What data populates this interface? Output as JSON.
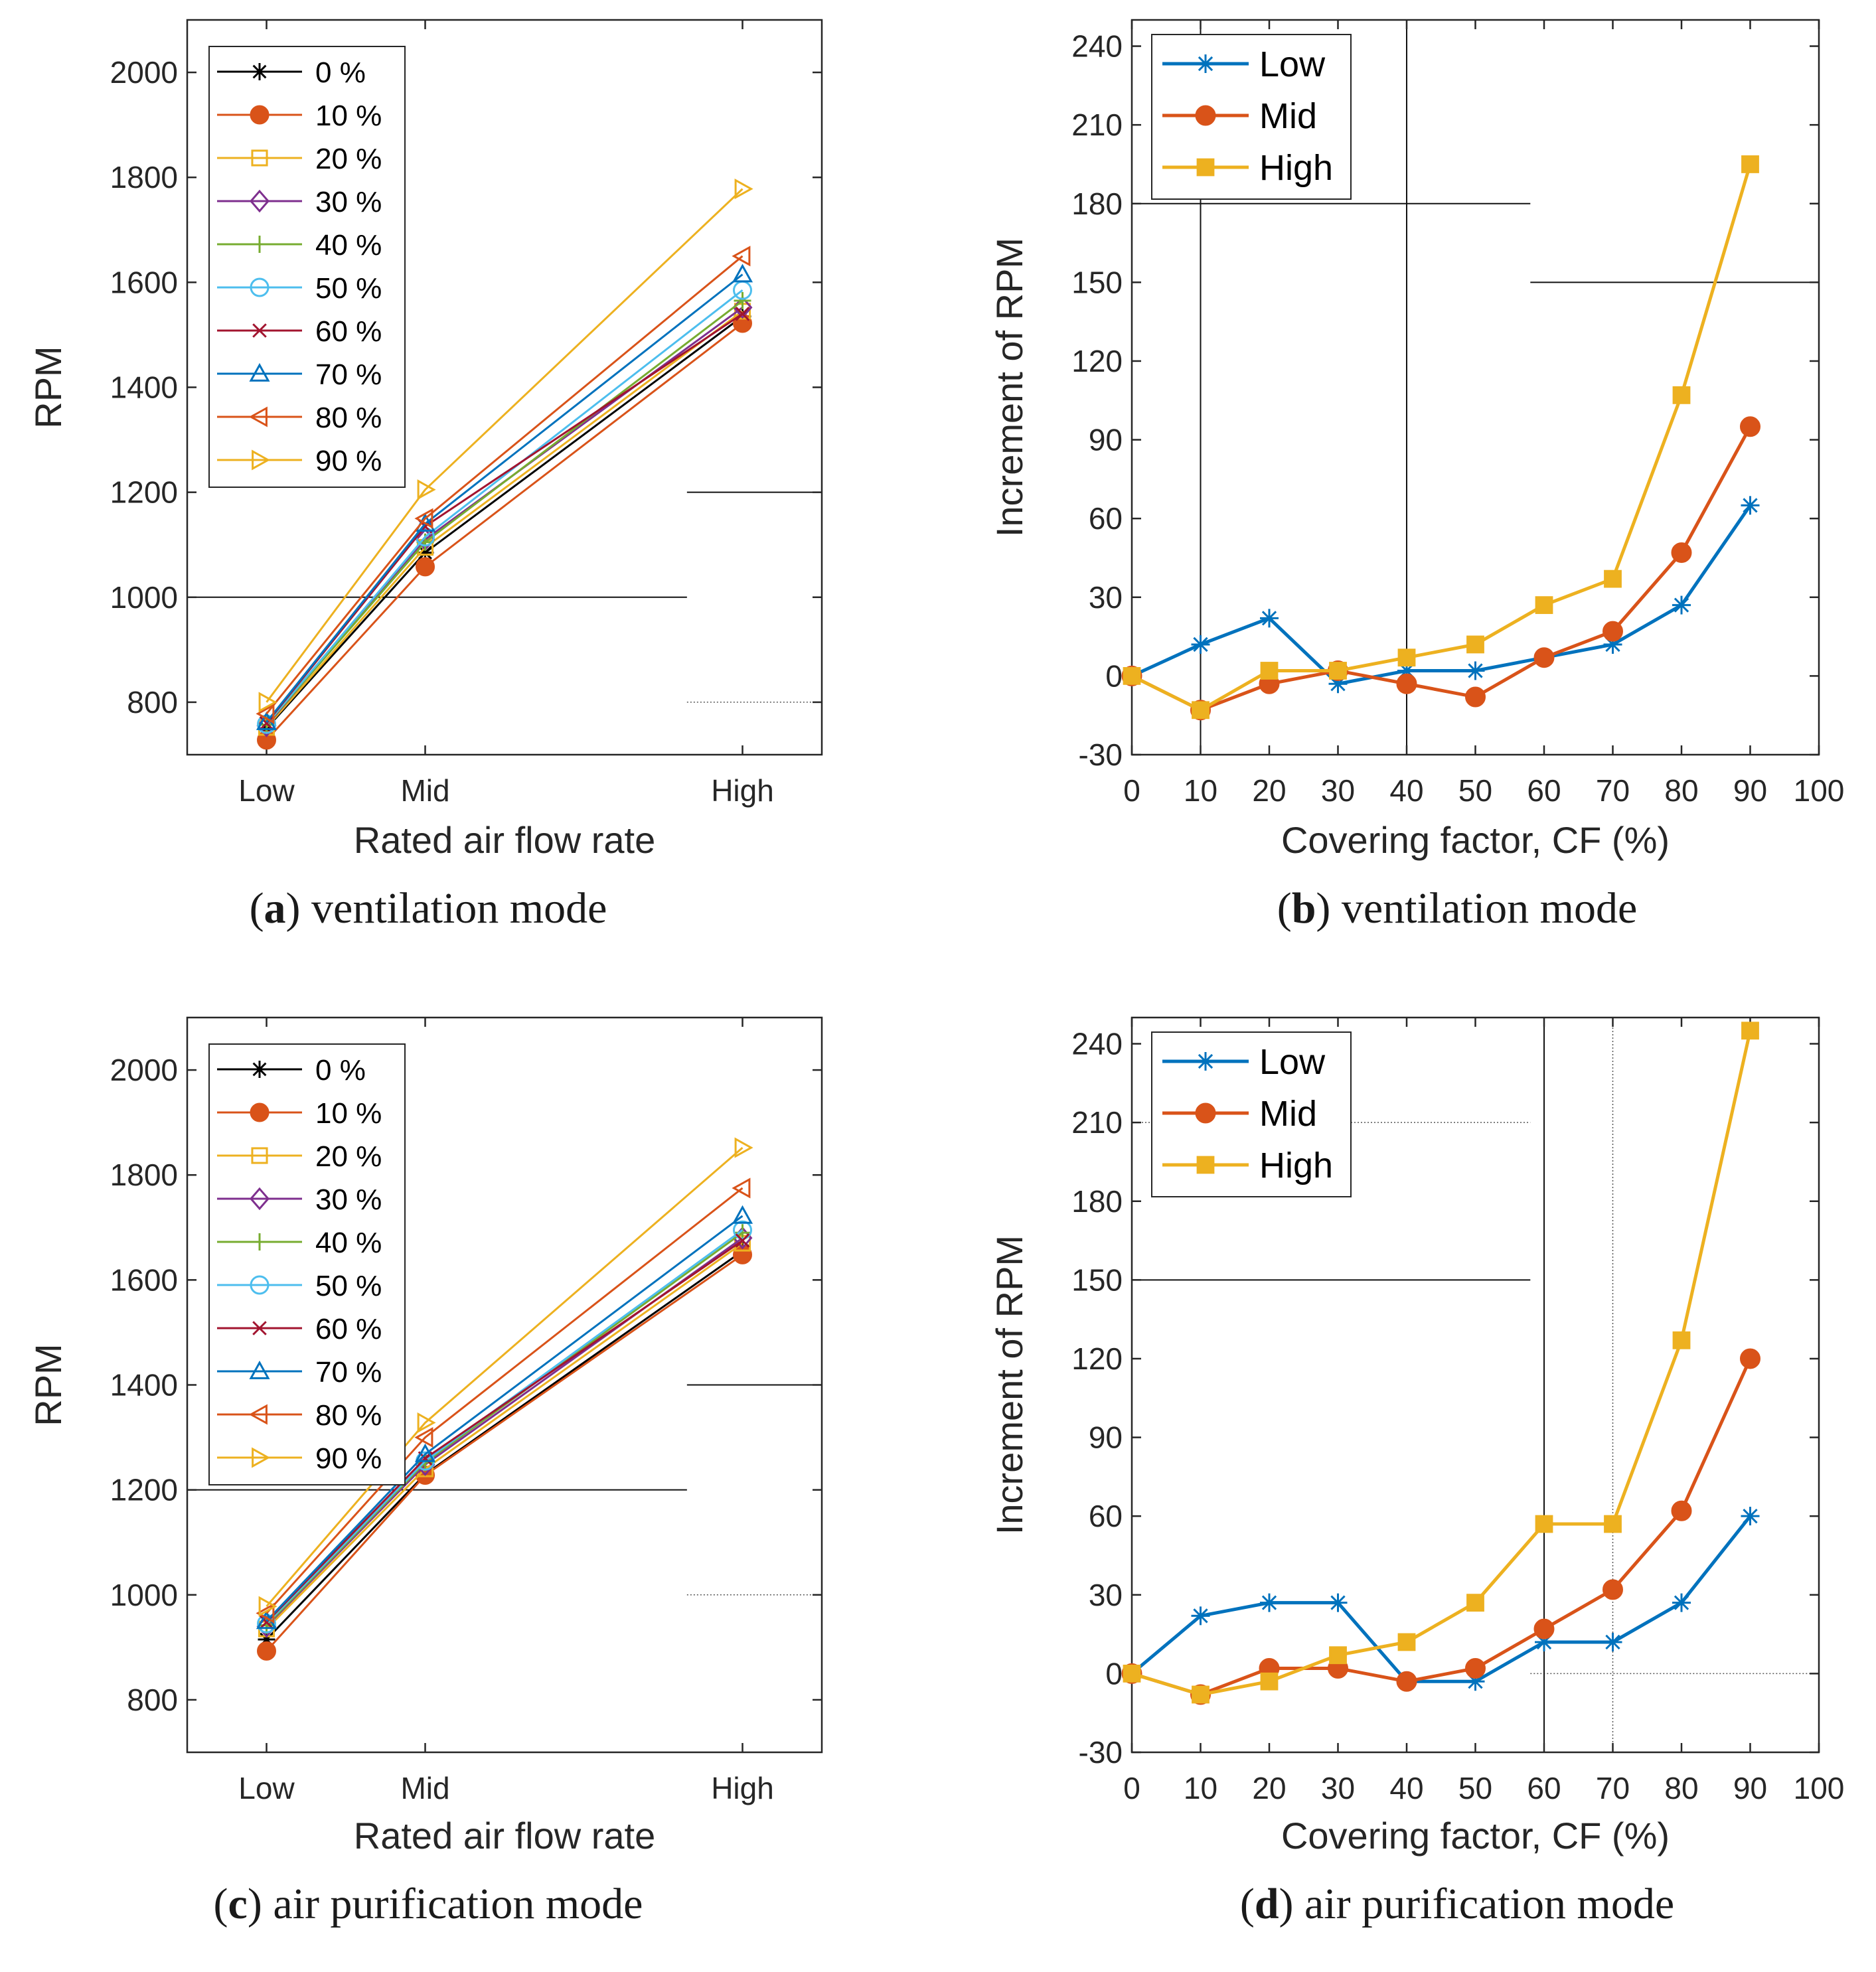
{
  "chart_data": [
    {
      "id": "a",
      "type": "line",
      "x_kind": "category",
      "categories": [
        "Low",
        "Mid",
        "High"
      ],
      "category_positions": [
        1,
        2,
        4
      ],
      "xlim": [
        0.5,
        4.5
      ],
      "ylim": [
        700,
        2100
      ],
      "yticks": [
        800,
        1000,
        1200,
        1400,
        1600,
        1800,
        2000
      ],
      "xlabel": "Rated air flow rate",
      "ylabel": "RPM",
      "legend_position": "top-left",
      "caption_letter": "a",
      "caption_text": "ventilation mode",
      "stray_lines": [
        {
          "y": 1000,
          "x_from": 0.5,
          "x_to": 3.65,
          "style": "solid"
        },
        {
          "y": 1200,
          "x_from": 3.65,
          "x_to": 4.5,
          "style": "solid"
        },
        {
          "y": 800,
          "x_from": 3.65,
          "x_to": 4.5,
          "style": "dotted"
        }
      ],
      "series": [
        {
          "name": "0 %",
          "color": "#000000",
          "marker": "star",
          "values": [
            750,
            1085,
            1535
          ]
        },
        {
          "name": "10 %",
          "color": "#D95319",
          "marker": "circle-filled",
          "values": [
            728,
            1058,
            1522
          ]
        },
        {
          "name": "20 %",
          "color": "#EDB120",
          "marker": "square",
          "values": [
            752,
            1095,
            1545
          ]
        },
        {
          "name": "30 %",
          "color": "#7E2F8E",
          "marker": "diamond",
          "values": [
            755,
            1110,
            1552
          ]
        },
        {
          "name": "40 %",
          "color": "#77AC30",
          "marker": "plus",
          "values": [
            757,
            1105,
            1565
          ]
        },
        {
          "name": "50 %",
          "color": "#4DBEEE",
          "marker": "circle",
          "values": [
            758,
            1115,
            1585
          ]
        },
        {
          "name": "60 %",
          "color": "#A2142F",
          "marker": "x",
          "values": [
            760,
            1135,
            1540
          ]
        },
        {
          "name": "70 %",
          "color": "#0072BD",
          "marker": "triangle-up",
          "values": [
            762,
            1140,
            1615
          ]
        },
        {
          "name": "80 %",
          "color": "#D95319",
          "marker": "triangle-left",
          "values": [
            778,
            1150,
            1650
          ]
        },
        {
          "name": "90 %",
          "color": "#EDB120",
          "marker": "triangle-right",
          "values": [
            800,
            1205,
            1778
          ]
        }
      ]
    },
    {
      "id": "b",
      "type": "line",
      "x_kind": "numeric",
      "xlim": [
        0,
        100
      ],
      "xticks": [
        0,
        10,
        20,
        30,
        40,
        50,
        60,
        70,
        80,
        90,
        100
      ],
      "ylim": [
        -30,
        250
      ],
      "yticks": [
        -30,
        0,
        30,
        60,
        90,
        120,
        150,
        180,
        210,
        240
      ],
      "xlabel": "Covering factor, CF (%)",
      "ylabel": "Increment of RPM",
      "legend_position": "top-left",
      "caption_letter": "b",
      "caption_text": "ventilation mode",
      "stray_lines": [
        {
          "y": 180,
          "x_from": 0,
          "x_to": 58,
          "style": "solid"
        },
        {
          "y": 150,
          "x_from": 58,
          "x_to": 100,
          "style": "solid"
        },
        {
          "x": 10,
          "y_from": -30,
          "y_to": 250,
          "style": "solid"
        },
        {
          "x": 40,
          "y_from": -30,
          "y_to": 250,
          "style": "solid"
        }
      ],
      "x": [
        0,
        10,
        20,
        30,
        40,
        50,
        60,
        70,
        80,
        90
      ],
      "series": [
        {
          "name": "Low",
          "color": "#0072BD",
          "marker": "star",
          "values": [
            0,
            12,
            22,
            -3,
            2,
            2,
            7,
            12,
            27,
            65
          ]
        },
        {
          "name": "Mid",
          "color": "#D95319",
          "marker": "circle-filled",
          "values": [
            0,
            -13,
            -3,
            2,
            -3,
            -8,
            7,
            17,
            47,
            95
          ]
        },
        {
          "name": "High",
          "color": "#EDB120",
          "marker": "square-filled",
          "values": [
            0,
            -13,
            2,
            2,
            7,
            12,
            27,
            37,
            107,
            195
          ]
        }
      ]
    },
    {
      "id": "c",
      "type": "line",
      "x_kind": "category",
      "categories": [
        "Low",
        "Mid",
        "High"
      ],
      "category_positions": [
        1,
        2,
        4
      ],
      "xlim": [
        0.5,
        4.5
      ],
      "ylim": [
        700,
        2100
      ],
      "yticks": [
        800,
        1000,
        1200,
        1400,
        1600,
        1800,
        2000
      ],
      "xlabel": "Rated air flow rate",
      "ylabel": "RPM",
      "legend_position": "top-left",
      "caption_letter": "c",
      "caption_text": "air purification mode",
      "stray_lines": [
        {
          "y": 1200,
          "x_from": 0.5,
          "x_to": 3.65,
          "style": "solid"
        },
        {
          "y": 1400,
          "x_from": 3.65,
          "x_to": 4.5,
          "style": "solid"
        },
        {
          "y": 1000,
          "x_from": 3.65,
          "x_to": 4.5,
          "style": "dotted"
        }
      ],
      "series": [
        {
          "name": "0 %",
          "color": "#000000",
          "marker": "star",
          "values": [
            915,
            1230,
            1655
          ]
        },
        {
          "name": "10 %",
          "color": "#D95319",
          "marker": "circle-filled",
          "values": [
            893,
            1228,
            1648
          ]
        },
        {
          "name": "20 %",
          "color": "#EDB120",
          "marker": "square",
          "values": [
            935,
            1240,
            1670
          ]
        },
        {
          "name": "30 %",
          "color": "#7E2F8E",
          "marker": "diamond",
          "values": [
            940,
            1248,
            1680
          ]
        },
        {
          "name": "40 %",
          "color": "#77AC30",
          "marker": "plus",
          "values": [
            942,
            1252,
            1690
          ]
        },
        {
          "name": "50 %",
          "color": "#4DBEEE",
          "marker": "circle",
          "values": [
            945,
            1255,
            1695
          ]
        },
        {
          "name": "60 %",
          "color": "#A2142F",
          "marker": "x",
          "values": [
            948,
            1260,
            1675
          ]
        },
        {
          "name": "70 %",
          "color": "#0072BD",
          "marker": "triangle-up",
          "values": [
            950,
            1268,
            1722
          ]
        },
        {
          "name": "80 %",
          "color": "#D95319",
          "marker": "triangle-left",
          "values": [
            965,
            1300,
            1775
          ]
        },
        {
          "name": "90 %",
          "color": "#EDB120",
          "marker": "triangle-right",
          "values": [
            978,
            1328,
            1852
          ]
        }
      ]
    },
    {
      "id": "d",
      "type": "line",
      "x_kind": "numeric",
      "xlim": [
        0,
        100
      ],
      "xticks": [
        0,
        10,
        20,
        30,
        40,
        50,
        60,
        70,
        80,
        90,
        100
      ],
      "ylim": [
        -30,
        250
      ],
      "yticks": [
        -30,
        0,
        30,
        60,
        90,
        120,
        150,
        180,
        210,
        240
      ],
      "xlabel": "Covering factor, CF (%)",
      "ylabel": "Increment of RPM",
      "legend_position": "top-left",
      "caption_letter": "d",
      "caption_text": "air purification mode",
      "stray_lines": [
        {
          "y": 150,
          "x_from": 0,
          "x_to": 58,
          "style": "solid"
        },
        {
          "y": 210,
          "x_from": 0,
          "x_to": 58,
          "style": "dotted"
        },
        {
          "y": 0,
          "x_from": 58,
          "x_to": 100,
          "style": "dotted"
        },
        {
          "x": 60,
          "y_from": -30,
          "y_to": 250,
          "style": "solid"
        },
        {
          "x": 70,
          "y_from": -30,
          "y_to": 250,
          "style": "dotted"
        }
      ],
      "x": [
        0,
        10,
        20,
        30,
        40,
        50,
        60,
        70,
        80,
        90
      ],
      "series": [
        {
          "name": "Low",
          "color": "#0072BD",
          "marker": "star",
          "values": [
            0,
            22,
            27,
            27,
            -3,
            -3,
            12,
            12,
            27,
            60
          ]
        },
        {
          "name": "Mid",
          "color": "#D95319",
          "marker": "circle-filled",
          "values": [
            0,
            -8,
            2,
            2,
            -3,
            2,
            17,
            32,
            62,
            120
          ]
        },
        {
          "name": "High",
          "color": "#EDB120",
          "marker": "square-filled",
          "values": [
            0,
            -8,
            -3,
            7,
            12,
            27,
            57,
            57,
            127,
            245
          ]
        }
      ]
    }
  ]
}
